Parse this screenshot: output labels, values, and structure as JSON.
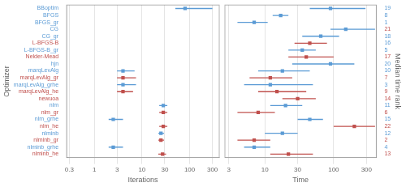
{
  "chart_data": [
    {
      "type": "scatter",
      "orientation": "horizontal",
      "log": "x",
      "grid": true,
      "marker": "square",
      "xlabel": "Iterations",
      "ylabel": "Optimizer",
      "categories": [
        "BBoptim",
        "BFGS",
        "BFGS_gr",
        "CG",
        "CG_gr",
        "L-BFGS-B",
        "L-BFGS-B_gr",
        "Nelder-Mead",
        "hjn",
        "marqLevAlg",
        "marqLevAlg_gr",
        "marqLevAlg_grhe",
        "marqLevAlg_he",
        "newuoa",
        "nlm",
        "nlm_gr",
        "nlm_grhe",
        "nlm_he",
        "nlminb",
        "nlminb_gr",
        "nlminb_grhe",
        "nlminb_he"
      ],
      "colors": [
        "#5B9BD5",
        "#5B9BD5",
        "#5B9BD5",
        "#5B9BD5",
        "#5B9BD5",
        "#C0504D",
        "#5B9BD5",
        "#C0504D",
        "#5B9BD5",
        "#5B9BD5",
        "#C0504D",
        "#5B9BD5",
        "#C0504D",
        "#C0504D",
        "#5B9BD5",
        "#C0504D",
        "#5B9BD5",
        "#C0504D",
        "#5B9BD5",
        "#C0504D",
        "#5B9BD5",
        "#C0504D"
      ],
      "values": [
        80,
        null,
        null,
        null,
        null,
        null,
        null,
        null,
        null,
        4.0,
        4.0,
        4.0,
        4.0,
        null,
        28,
        28,
        2.5,
        28,
        25,
        25,
        2.5,
        27
      ],
      "low": [
        50,
        null,
        null,
        null,
        null,
        null,
        null,
        null,
        null,
        3.0,
        3.0,
        3.0,
        3.0,
        null,
        23,
        23,
        2.0,
        23,
        22,
        22,
        2.0,
        22
      ],
      "high": [
        300,
        null,
        null,
        null,
        null,
        null,
        null,
        null,
        null,
        7.0,
        7.5,
        7.5,
        6.5,
        null,
        34,
        34,
        4.0,
        34,
        29,
        29,
        4.0,
        32
      ],
      "xlim": [
        0.2630267991895382,
        416.8693834703354
      ],
      "xticks": [
        0.3,
        1,
        3,
        10,
        30,
        100,
        300
      ]
    },
    {
      "type": "scatter",
      "orientation": "horizontal",
      "log": "x",
      "grid": true,
      "marker": "square",
      "xlabel": "Time",
      "ylabel": "Median time rank",
      "categories": [
        19,
        8,
        1,
        21,
        18,
        16,
        5,
        17,
        20,
        10,
        7,
        3,
        9,
        14,
        11,
        6,
        15,
        22,
        12,
        2,
        4,
        13
      ],
      "category_colors": [
        "#5B9BD5",
        "#5B9BD5",
        "#5B9BD5",
        "#C0504D",
        "#5B9BD5",
        "#5B9BD5",
        "#5B9BD5",
        "#C0504D",
        "#5B9BD5",
        "#5B9BD5",
        "#C0504D",
        "#5B9BD5",
        "#C0504D",
        "#C0504D",
        "#5B9BD5",
        "#C0504D",
        "#5B9BD5",
        "#C0504D",
        "#5B9BD5",
        "#C0504D",
        "#5B9BD5",
        "#C0504D"
      ],
      "colors": [
        "#5B9BD5",
        "#5B9BD5",
        "#5B9BD5",
        "#5B9BD5",
        "#5B9BD5",
        "#C0504D",
        "#5B9BD5",
        "#C0504D",
        "#5B9BD5",
        "#5B9BD5",
        "#C0504D",
        "#5B9BD5",
        "#C0504D",
        "#C0504D",
        "#5B9BD5",
        "#C0504D",
        "#5B9BD5",
        "#C0504D",
        "#5B9BD5",
        "#C0504D",
        "#5B9BD5",
        "#C0504D"
      ],
      "values": [
        90,
        17,
        7,
        150,
        65,
        45,
        35,
        40,
        90,
        18,
        12,
        12,
        15,
        30,
        20,
        8,
        45,
        200,
        18,
        7,
        7,
        22
      ],
      "low": [
        45,
        13,
        4,
        90,
        35,
        27,
        22,
        22,
        25,
        8,
        6,
        5,
        8,
        18,
        12,
        4,
        30,
        100,
        10,
        4,
        5,
        12
      ],
      "high": [
        290,
        22,
        11,
        400,
        120,
        80,
        55,
        100,
        200,
        45,
        25,
        50,
        40,
        55,
        35,
        14,
        70,
        400,
        30,
        12,
        12,
        50
      ],
      "xlim": [
        2.630267991895382,
        416.8693834703354
      ],
      "xticks": [
        3,
        10,
        30,
        100,
        300
      ]
    }
  ]
}
